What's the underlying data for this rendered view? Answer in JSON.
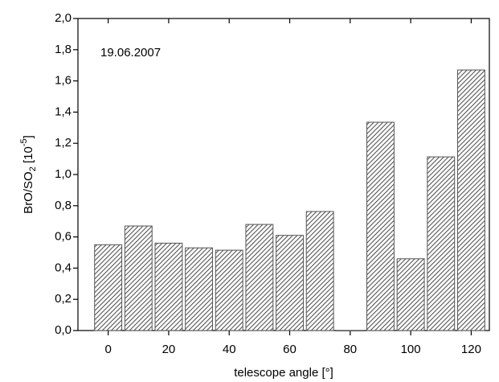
{
  "chart_data": {
    "type": "bar",
    "annotation": "19.06.2007",
    "xlabel": "telescope angle [°]",
    "ylabel": {
      "main": "BrO/SO",
      "sub": "2",
      "mid": " [10",
      "sup": "-5",
      "end": "]"
    },
    "x": [
      0,
      10,
      20,
      30,
      40,
      50,
      60,
      70,
      80,
      90,
      100,
      110,
      120
    ],
    "values": [
      0.55,
      0.67,
      0.56,
      0.53,
      0.515,
      0.68,
      0.61,
      0.763,
      0,
      1.335,
      0.46,
      1.113,
      1.67
    ],
    "color": "#555555",
    "xlim": [
      -10,
      126
    ],
    "xticks": [
      0,
      20,
      40,
      60,
      80,
      100,
      120
    ],
    "ylim": [
      0,
      2
    ],
    "yticks": [
      {
        "value": 0,
        "label": "0,0"
      },
      {
        "value": 0.2,
        "label": "0,2"
      },
      {
        "value": 0.4,
        "label": "0,4"
      },
      {
        "value": 0.6,
        "label": "0,6"
      },
      {
        "value": 0.8,
        "label": "0,8"
      },
      {
        "value": 1.0,
        "label": "1,0"
      },
      {
        "value": 1.2,
        "label": "1,2"
      },
      {
        "value": 1.4,
        "label": "1,4"
      },
      {
        "value": 1.6,
        "label": "1,6"
      },
      {
        "value": 1.8,
        "label": "1,8"
      },
      {
        "value": 2.0,
        "label": "2,0"
      }
    ]
  }
}
